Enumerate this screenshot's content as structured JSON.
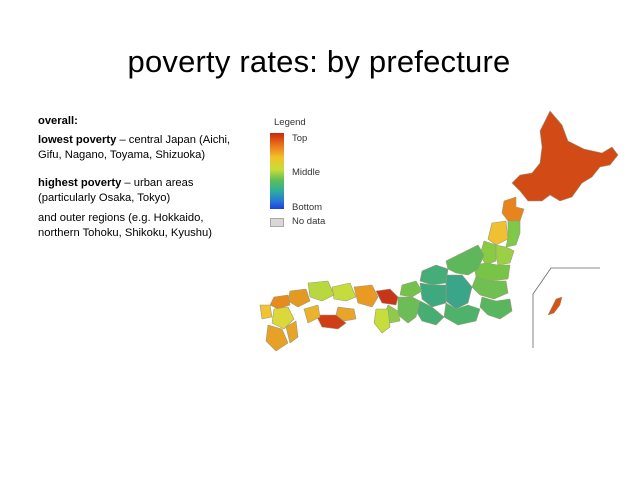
{
  "slide": {
    "title": "poverty rates: by prefecture"
  },
  "text": {
    "overall_label": "overall:",
    "lowest_bold": "lowest poverty",
    "lowest_rest": " – central Japan (Aichi, Gifu, Nagano, Toyama, Shizuoka)",
    "highest_bold": "highest poverty",
    "highest_rest": " – urban areas (particularly Osaka, Tokyo)",
    "outer": "and outer regions (e.g. Hokkaido, northern Tohoku, Shikoku, Kyushu)"
  },
  "legend": {
    "title": "Legend",
    "top": "Top",
    "middle": "Middle",
    "bottom": "Bottom",
    "no_data": "No data",
    "colors": {
      "top": "#c62a0d",
      "high": "#e86a1a",
      "upper_mid": "#f2c12a",
      "middle": "#c8dd3a",
      "lower_mid": "#5fbe57",
      "low": "#2fae9c",
      "bottom": "#1e3fe0",
      "no_data": "#d8d8d8"
    }
  }
}
